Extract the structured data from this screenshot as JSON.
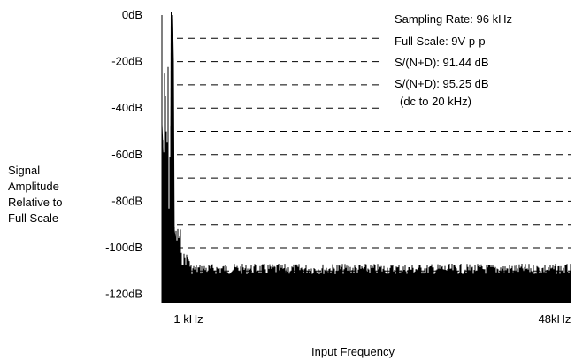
{
  "chart_data": {
    "type": "line",
    "title": "",
    "xlabel": "Input Frequency",
    "ylabel_lines": [
      "Signal",
      "Amplitude",
      "Relative to",
      "Full Scale"
    ],
    "y_ticks": [
      "0dB",
      "-20dB",
      "-40dB",
      "-60dB",
      "-80dB",
      "-100dB",
      "-120dB"
    ],
    "y_tick_values": [
      0,
      -20,
      -40,
      -60,
      -80,
      -100,
      -120
    ],
    "ylim": [
      -130,
      0
    ],
    "x_ticks": [
      "1 kHz",
      "48kHz"
    ],
    "x_tick_values": [
      1,
      48
    ],
    "xlim": [
      0,
      48
    ],
    "grid": "dashed-horizontal",
    "annotations": [
      "Sampling Rate: 96 kHz",
      "Full Scale: 9V p-p",
      "S/(N+D): 91.44 dB",
      "S/(N+D): 95.25 dB",
      "(dc to 20 kHz)"
    ],
    "series": [
      {
        "color": "#000000",
        "x": [
          0,
          0.2,
          0.4,
          0.6,
          0.8,
          0.9,
          1.0,
          1.1,
          1.2,
          1.4,
          1.6,
          2,
          3,
          4,
          6,
          8,
          10,
          15,
          20,
          25,
          30,
          35,
          40,
          45,
          48
        ],
        "y": [
          -47,
          -70,
          -90,
          -100,
          -95,
          -20,
          0,
          -20,
          -92,
          -98,
          -104,
          -110,
          -113,
          -114,
          -115,
          -115,
          -116,
          -116,
          -116,
          -116,
          -116,
          -116,
          -116,
          -116,
          -116
        ]
      }
    ]
  }
}
